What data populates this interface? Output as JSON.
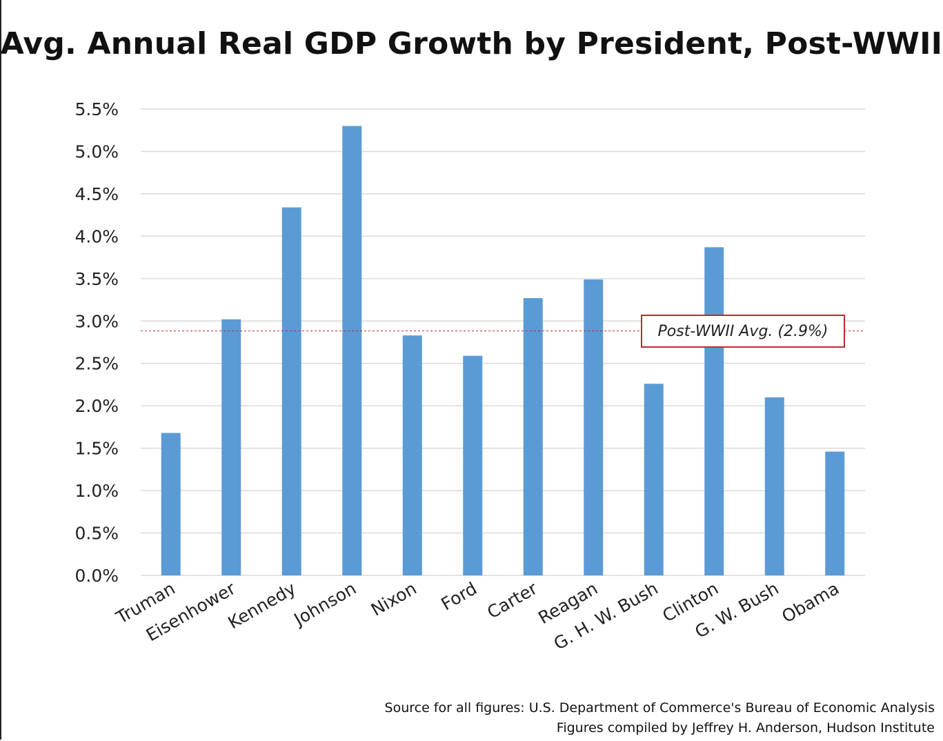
{
  "chart_data": {
    "type": "bar",
    "title": "Avg. Annual Real GDP Growth by President, Post-WWII",
    "categories": [
      "Truman",
      "Eisenhower",
      "Kennedy",
      "Johnson",
      "Nixon",
      "Ford",
      "Carter",
      "Reagan",
      "G. H. W. Bush",
      "Clinton",
      "G. W. Bush",
      "Obama"
    ],
    "values": [
      1.68,
      3.02,
      4.34,
      5.3,
      2.83,
      2.59,
      3.27,
      3.49,
      2.26,
      3.87,
      2.1,
      1.46
    ],
    "ylim": [
      0,
      5.5
    ],
    "yticks": [
      "0.0%",
      "0.5%",
      "1.0%",
      "1.5%",
      "2.0%",
      "2.5%",
      "3.0%",
      "3.5%",
      "4.0%",
      "4.5%",
      "5.0%",
      "5.5%"
    ],
    "ytick_values": [
      0,
      0.5,
      1.0,
      1.5,
      2.0,
      2.5,
      3.0,
      3.5,
      4.0,
      4.5,
      5.0,
      5.5
    ],
    "grid": true,
    "bar_color": "#5b9bd5",
    "reference_line": {
      "value": 2.9,
      "label": "Post-WWII Avg. (2.9%)",
      "color": "#c0282d"
    }
  },
  "footer": {
    "source": "Source for all figures: U.S. Department of Commerce's Bureau of Economic Analysis",
    "credit": "Figures compiled by Jeffrey H. Anderson, Hudson Institute"
  }
}
